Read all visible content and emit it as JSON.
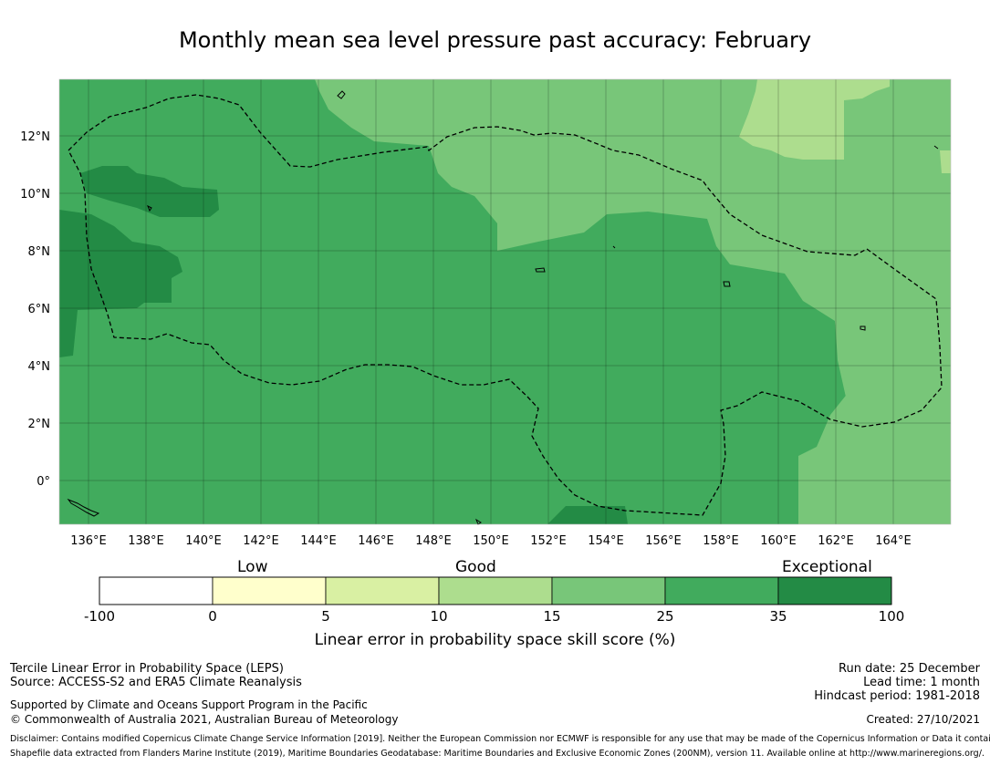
{
  "title": "Monthly mean sea level pressure past accuracy: February",
  "colors": {
    "skill_35_100": "#238b45",
    "skill_25_35": "#41ab5d",
    "skill_15_25": "#78c679",
    "skill_10_15": "#addd8e",
    "skill_5_10": "#d9f0a3",
    "skill_0_5": "#ffffcc",
    "skill_neg": "#ffffff"
  },
  "axes": {
    "x_ticks": [
      "136°E",
      "138°E",
      "140°E",
      "142°E",
      "144°E",
      "146°E",
      "148°E",
      "150°E",
      "152°E",
      "154°E",
      "156°E",
      "158°E",
      "160°E",
      "162°E",
      "164°E"
    ],
    "y_ticks": [
      "12°N",
      "10°N",
      "8°N",
      "6°N",
      "4°N",
      "2°N",
      "0°"
    ]
  },
  "colorbar": {
    "categories": [
      "Low",
      "Good",
      "Exceptional"
    ],
    "ticks": [
      "-100",
      "0",
      "5",
      "10",
      "15",
      "25",
      "35",
      "100"
    ],
    "label": "Linear error in probability space skill score (%)"
  },
  "footer": {
    "left": {
      "line1": "Tercile Linear Error in Probability Space (LEPS)",
      "line2": "Source: ACCESS-S2 and ERA5 Climate Reanalysis",
      "line3": "Supported by Climate and Oceans Support Program in the Pacific",
      "line4": "© Commonwealth of Australia 2021, Australian Bureau of Meteorology"
    },
    "right": {
      "run_date": "Run date: 25 December",
      "lead_time": "Lead time: 1 month",
      "hindcast": "Hindcast period: 1981-2018",
      "created": "Created: 27/10/2021"
    },
    "disclaimer": "Disclaimer: Contains modified Copernicus Climate Change Service Information [2019]. Neither the European Commission nor ECMWF is responsible for any use that may be made of the Copernicus Information or Data it contains.",
    "shapefile": "Shapefile data extracted from Flanders Marine Institute (2019), Maritime Boundaries Geodatabase: Maritime Boundaries and Exclusive Economic Zones (200NM), version 11. Available online at http://www.marineregions.org/."
  }
}
